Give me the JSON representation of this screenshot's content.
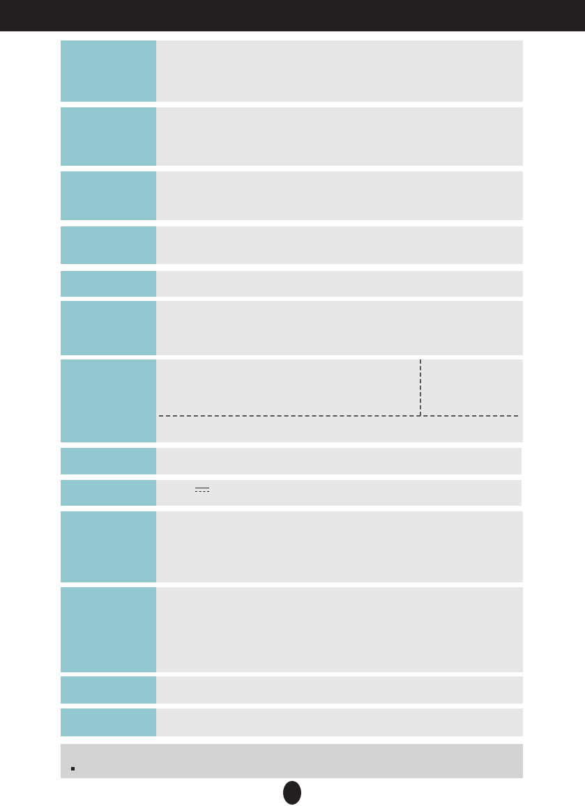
{
  "header": {
    "title": ""
  },
  "colors": {
    "header_bg": "#231f20",
    "label_cell": "#94c8d1",
    "value_cell": "#e7e7e7",
    "note_bg": "#d3d3d3"
  },
  "spec_table": {
    "rows": [
      {
        "label": "",
        "value": ""
      },
      {
        "label": "",
        "value": ""
      },
      {
        "label": "",
        "value": ""
      },
      {
        "label": "",
        "value": ""
      },
      {
        "label": "",
        "value": ""
      },
      {
        "label": "",
        "value": ""
      },
      {
        "label": "",
        "value": ""
      },
      {
        "label": "",
        "value": ""
      },
      {
        "label": "",
        "value": "",
        "icon": "dc-power-symbol-icon"
      },
      {
        "label": "",
        "value": ""
      },
      {
        "label": "",
        "value": ""
      },
      {
        "label": "",
        "value": ""
      },
      {
        "label": "",
        "value": ""
      }
    ]
  },
  "note": {
    "text": ""
  },
  "page_number": ""
}
